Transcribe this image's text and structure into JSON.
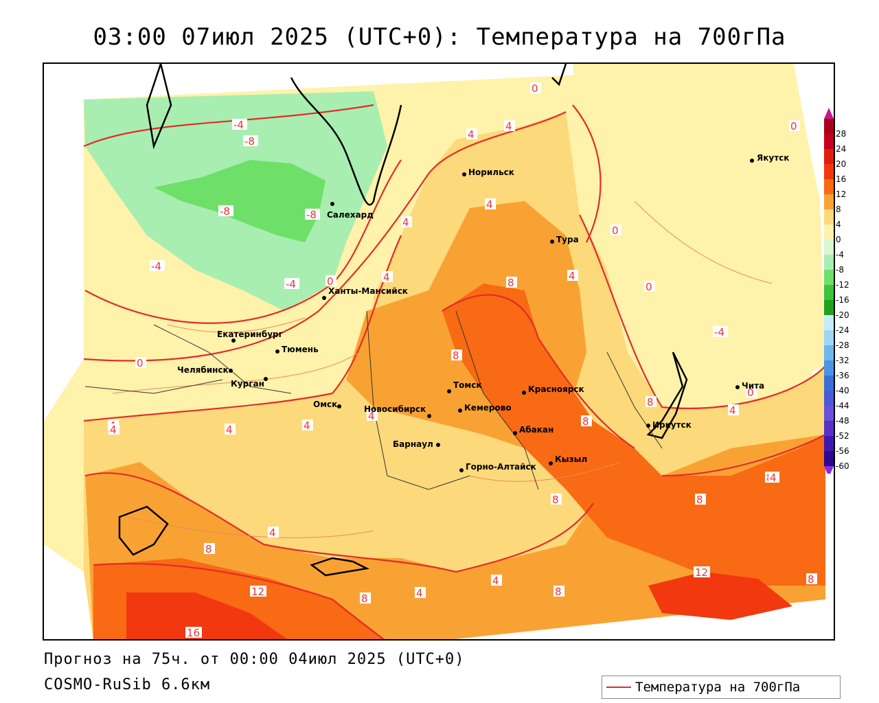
{
  "title": "03:00 07июл 2025 (UTC+0): Температура на 700гПа",
  "forecast_info": "Прогноз на 75ч. от 00:00 04июл 2025 (UTC+0)",
  "model_info": "COSMO-RuSib 6.6км",
  "legend": {
    "label": "Температура на 700гПа",
    "color": "#e32b2b"
  },
  "colorbar": {
    "levels": [
      "28",
      "24",
      "20",
      "16",
      "12",
      "8",
      "4",
      "0",
      "-4",
      "-8",
      "-12",
      "-16",
      "-20",
      "-24",
      "-28",
      "-32",
      "-36",
      "-40",
      "-44",
      "-48",
      "-52",
      "-56",
      "-60"
    ],
    "colors": [
      "#a8001c",
      "#c4001e",
      "#e01e10",
      "#f2380e",
      "#f86a14",
      "#f9a234",
      "#fcd97a",
      "#fff2aa",
      "#d9f7d0",
      "#a8eeb0",
      "#6ee06a",
      "#3cc43c",
      "#22a022",
      "#c6ecf8",
      "#9ed7f5",
      "#6fb8ee",
      "#4a94e4",
      "#3a6fd6",
      "#4a5ad8",
      "#6b50d8",
      "#5a30c8",
      "#4018b0",
      "#2a0a90"
    ]
  },
  "contour_labels": [
    "0",
    "-4",
    "-8",
    "-8",
    "-8",
    "-4",
    "-4",
    "0",
    "4",
    "4",
    "4",
    "4",
    "4",
    "0",
    "0",
    "8",
    "8",
    "4",
    "-4",
    "0",
    "0",
    "4",
    "4",
    "4",
    "4",
    "4",
    "8",
    "8",
    "8",
    "8",
    "8",
    "4",
    "4",
    "4",
    "8",
    "12",
    "8",
    "4",
    "4",
    "8",
    "12",
    "16",
    "8",
    "0"
  ],
  "cities": [
    {
      "name": "Норильск"
    },
    {
      "name": "Якутск"
    },
    {
      "name": "Салехард"
    },
    {
      "name": "Тура"
    },
    {
      "name": "Ханты-Мансийск"
    },
    {
      "name": "Екатеринбург"
    },
    {
      "name": "Тюмень"
    },
    {
      "name": "Челябинск"
    },
    {
      "name": "Курган"
    },
    {
      "name": "Омск"
    },
    {
      "name": "Новосибирск"
    },
    {
      "name": "Томск"
    },
    {
      "name": "Кемерово"
    },
    {
      "name": "Красноярск"
    },
    {
      "name": "Абакан"
    },
    {
      "name": "Барнаул"
    },
    {
      "name": "Горно-Алтайск"
    },
    {
      "name": "Кызыл"
    },
    {
      "name": "Иркутск"
    },
    {
      "name": "Чита"
    }
  ]
}
